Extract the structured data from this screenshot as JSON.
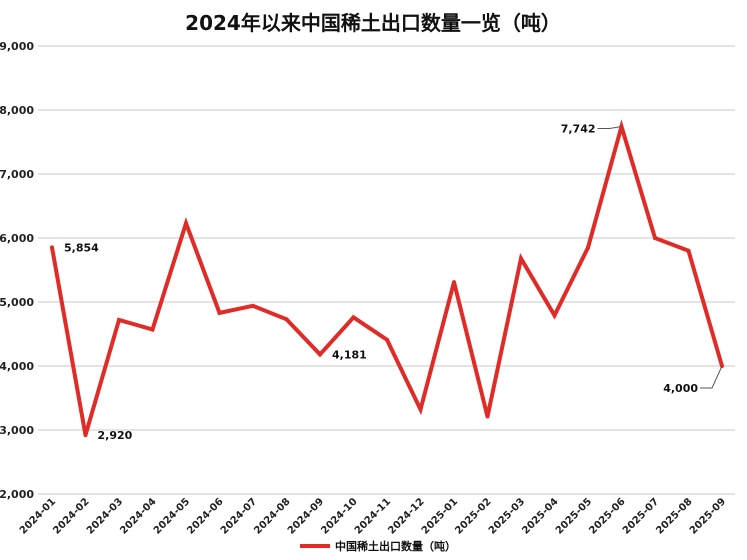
{
  "chart_data": {
    "type": "line",
    "title": "2024年以来中国稀土出口数量一览（吨）",
    "categories": [
      "2024-01",
      "2024-02",
      "2024-03",
      "2024-04",
      "2024-05",
      "2024-06",
      "2024-07",
      "2024-08",
      "2024-09",
      "2024-10",
      "2024-11",
      "2024-12",
      "2025-01",
      "2025-02",
      "2025-03",
      "2025-04",
      "2025-05",
      "2025-06",
      "2025-07",
      "2025-08",
      "2025-09"
    ],
    "series": [
      {
        "name": "中国稀土出口数量（吨）",
        "color": "#e02b27",
        "values": [
          5854,
          2920,
          4720,
          4570,
          6230,
          4830,
          4940,
          4730,
          4181,
          4760,
          4410,
          3320,
          5310,
          3210,
          5680,
          4790,
          5850,
          7742,
          6000,
          5800,
          4000
        ]
      }
    ],
    "ylim": [
      2000,
      9000
    ],
    "yticks": [
      "2,000",
      "3,000",
      "4,000",
      "5,000",
      "6,000",
      "7,000",
      "8,000",
      "9,000"
    ],
    "ytick_values": [
      2000,
      3000,
      4000,
      5000,
      6000,
      7000,
      8000,
      9000
    ],
    "data_labels": [
      {
        "index": 0,
        "text": "5,854"
      },
      {
        "index": 1,
        "text": "2,920"
      },
      {
        "index": 8,
        "text": "4,181"
      },
      {
        "index": 17,
        "text": "7,742"
      },
      {
        "index": 20,
        "text": "4,000"
      }
    ],
    "grid": true,
    "legend_position": "bottom"
  }
}
